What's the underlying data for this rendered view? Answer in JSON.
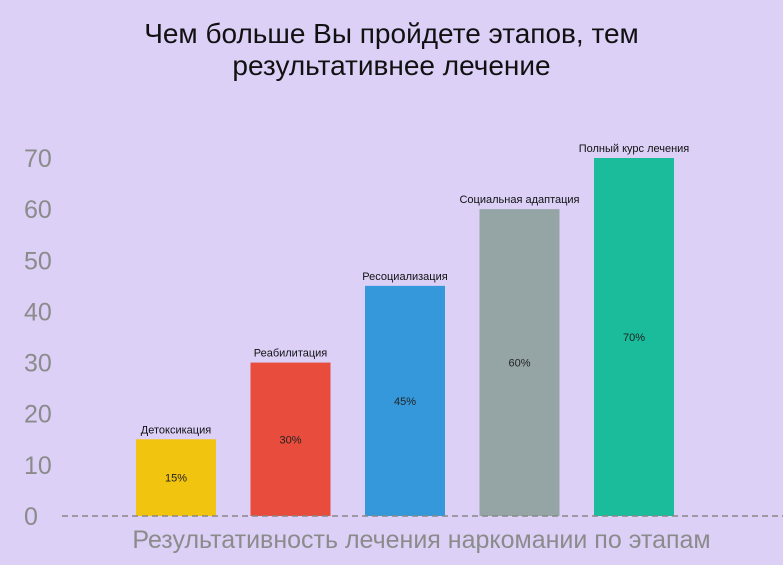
{
  "chart_data": {
    "type": "bar",
    "title": "Чем больше Вы пройдете этапов, тем\nрезультативнее лечение",
    "xlabel": "Результативность лечения наркомании по этапам",
    "ylabel": "",
    "ylim": [
      0,
      70
    ],
    "yticks": [
      0,
      10,
      20,
      30,
      40,
      50,
      60,
      70
    ],
    "categories": [
      "Детоксикация",
      "Реабилитация",
      "Ресоциализация",
      "Социальная адаптация",
      "Полный курс лечения"
    ],
    "values": [
      15,
      30,
      45,
      60,
      70
    ],
    "data_labels": [
      "15%",
      "30%",
      "45%",
      "60%",
      "70%"
    ],
    "colors": [
      "#f1c40f",
      "#e74c3c",
      "#3498db",
      "#95a5a6",
      "#1abc9c"
    ],
    "grid": false,
    "legend": "none"
  }
}
